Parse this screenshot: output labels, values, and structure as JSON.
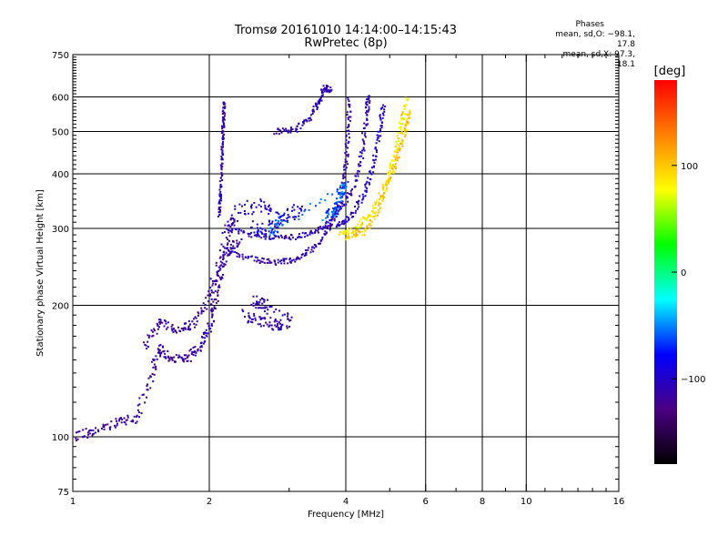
{
  "chart_data": {
    "type": "scatter",
    "title": "Tromsø 20161010 14:14:00–14:15:43",
    "subtitle": "RwPretec (8p)",
    "xlabel": "Frequency [MHz]",
    "ylabel": "Stationary phase Virtual Height [km]",
    "x_scale": "log",
    "y_scale": "log",
    "xlim": [
      1,
      16
    ],
    "ylim": [
      75,
      750
    ],
    "x_ticks": [
      1,
      2,
      4,
      6,
      8,
      10,
      16
    ],
    "x_tick_labels": [
      "1",
      "2",
      "4",
      "6",
      "8",
      "10",
      "16"
    ],
    "y_ticks": [
      75,
      100,
      200,
      300,
      400,
      500,
      600,
      750
    ],
    "y_tick_labels": [
      "75",
      "100",
      "200",
      "300",
      "400",
      "500",
      "600",
      "750"
    ],
    "grid": true,
    "colorbar": {
      "label": "[deg]",
      "range": [
        -180,
        180
      ],
      "ticks": [
        -100,
        0,
        100
      ],
      "tick_labels": [
        "−100",
        "0",
        "100"
      ],
      "colors": [
        "#000000",
        "#4b0082",
        "#0000ff",
        "#00ffff",
        "#00ff00",
        "#ffff00",
        "#ff8000",
        "#ff0000"
      ]
    },
    "stats": {
      "header": "Phases",
      "line_o": "mean, sd,O: −98.1, 17.8",
      "line_x": "mean, sd,X:  97.3, 18.1"
    },
    "traces": [
      {
        "name": "O-low",
        "phase": -115,
        "spread": 0.03,
        "points": [
          [
            1.0,
            100
          ],
          [
            1.12,
            103
          ],
          [
            1.25,
            108
          ],
          [
            1.38,
            110
          ],
          [
            1.5,
            140
          ],
          [
            1.55,
            160
          ],
          [
            1.65,
            150
          ],
          [
            1.8,
            152
          ],
          [
            1.9,
            160
          ],
          [
            2.0,
            175
          ],
          [
            2.05,
            200
          ],
          [
            2.1,
            230
          ],
          [
            2.2,
            270
          ],
          [
            2.35,
            280
          ]
        ]
      },
      {
        "name": "O-low-branch",
        "phase": -115,
        "spread": 0.035,
        "points": [
          [
            1.45,
            160
          ],
          [
            1.55,
            185
          ],
          [
            1.7,
            175
          ],
          [
            1.85,
            180
          ],
          [
            2.0,
            210
          ],
          [
            2.1,
            250
          ],
          [
            2.2,
            300
          ],
          [
            2.3,
            320
          ]
        ]
      },
      {
        "name": "O-spread-200",
        "phase": -110,
        "spread": 0.04,
        "points": [
          [
            2.4,
            190
          ],
          [
            2.6,
            185
          ],
          [
            2.8,
            178
          ],
          [
            3.0,
            185
          ],
          [
            2.5,
            205
          ],
          [
            2.7,
            200
          ]
        ]
      },
      {
        "name": "O-F2a",
        "phase": -110,
        "spread": 0.02,
        "points": [
          [
            2.2,
            265
          ],
          [
            2.5,
            255
          ],
          [
            2.8,
            250
          ],
          [
            3.1,
            255
          ],
          [
            3.4,
            270
          ],
          [
            3.7,
            300
          ],
          [
            3.9,
            350
          ],
          [
            4.0,
            420
          ],
          [
            4.05,
            500
          ],
          [
            4.08,
            600
          ]
        ]
      },
      {
        "name": "O-F2b",
        "phase": -105,
        "spread": 0.02,
        "points": [
          [
            2.2,
            300
          ],
          [
            2.5,
            290
          ],
          [
            2.9,
            285
          ],
          [
            3.3,
            290
          ],
          [
            3.6,
            305
          ],
          [
            3.9,
            330
          ],
          [
            4.2,
            380
          ],
          [
            4.35,
            450
          ],
          [
            4.45,
            550
          ],
          [
            4.5,
            600
          ]
        ]
      },
      {
        "name": "O-F2c",
        "phase": -98,
        "spread": 0.02,
        "points": [
          [
            3.8,
            300
          ],
          [
            4.1,
            320
          ],
          [
            4.4,
            360
          ],
          [
            4.6,
            420
          ],
          [
            4.75,
            500
          ],
          [
            4.85,
            580
          ]
        ]
      },
      {
        "name": "O-upper-hook",
        "phase": -110,
        "spread": 0.02,
        "points": [
          [
            2.8,
            500
          ],
          [
            3.1,
            505
          ],
          [
            3.35,
            540
          ],
          [
            3.5,
            590
          ],
          [
            3.6,
            630
          ],
          [
            3.7,
            620
          ]
        ]
      },
      {
        "name": "O-vertical-2.1",
        "phase": -110,
        "spread": 0.012,
        "points": [
          [
            2.1,
            320
          ],
          [
            2.12,
            360
          ],
          [
            2.13,
            420
          ],
          [
            2.14,
            480
          ],
          [
            2.15,
            530
          ],
          [
            2.16,
            590
          ]
        ]
      },
      {
        "name": "O-spread-cluster",
        "phase": -95,
        "spread": 0.05,
        "points": [
          [
            2.3,
            330
          ],
          [
            2.6,
            340
          ],
          [
            2.9,
            310
          ],
          [
            3.2,
            330
          ],
          [
            2.5,
            300
          ],
          [
            2.8,
            290
          ]
        ]
      },
      {
        "name": "X-F2",
        "phase": 85,
        "spread": 0.02,
        "points": [
          [
            3.9,
            290
          ],
          [
            4.2,
            300
          ],
          [
            4.5,
            320
          ],
          [
            4.8,
            360
          ],
          [
            5.0,
            400
          ],
          [
            5.15,
            450
          ],
          [
            5.3,
            520
          ],
          [
            5.45,
            600
          ]
        ]
      },
      {
        "name": "X-F2b",
        "phase": 100,
        "spread": 0.02,
        "points": [
          [
            4.0,
            285
          ],
          [
            4.4,
            295
          ],
          [
            4.7,
            330
          ],
          [
            4.95,
            380
          ],
          [
            5.2,
            430
          ],
          [
            5.4,
            500
          ],
          [
            5.55,
            560
          ]
        ]
      },
      {
        "name": "cyan-mix",
        "phase": -60,
        "spread": 0.03,
        "points": [
          [
            3.6,
            320
          ],
          [
            3.8,
            330
          ],
          [
            3.9,
            360
          ],
          [
            4.0,
            380
          ],
          [
            2.7,
            290
          ],
          [
            2.9,
            320
          ]
        ]
      }
    ]
  }
}
